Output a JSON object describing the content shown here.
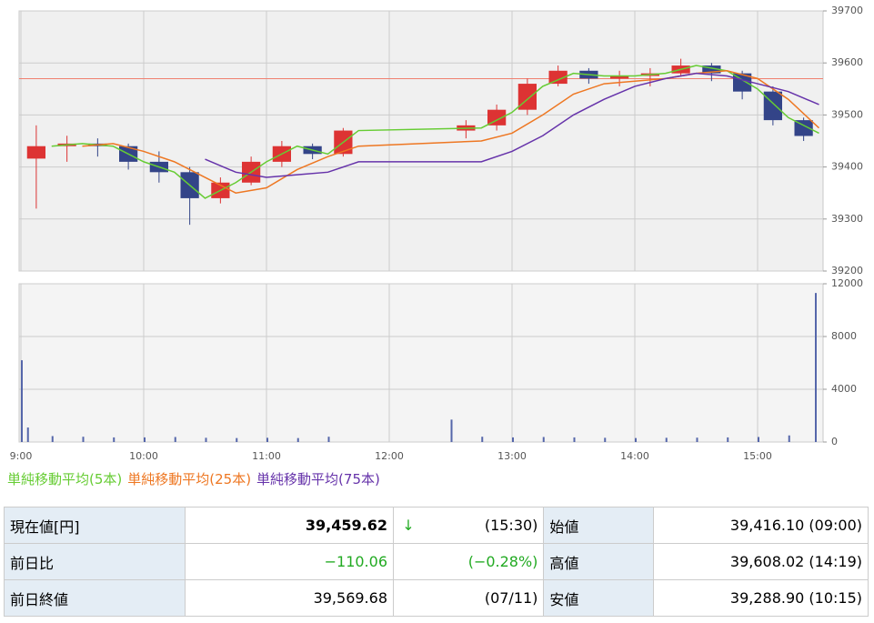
{
  "chart_data": [
    {
      "type": "candlestick",
      "x": [
        0,
        15,
        30,
        45,
        60,
        75,
        90,
        105,
        120,
        135,
        150,
        210,
        225,
        240,
        255,
        270,
        285,
        300,
        315,
        330,
        345,
        360,
        375
      ],
      "open": [
        39416.1,
        39440,
        39445,
        39440,
        39410,
        39390,
        39340,
        39370,
        39410,
        39440,
        39425,
        39470,
        39480,
        39510,
        39560,
        39585,
        39570,
        39575,
        39580,
        39595,
        39580,
        39545,
        39490
      ],
      "high": [
        39480,
        39460,
        39455,
        39445,
        39430,
        39400,
        39380,
        39420,
        39450,
        39445,
        39475,
        39490,
        39520,
        39570,
        39595,
        39590,
        39585,
        39590,
        39608.02,
        39600,
        39585,
        39555,
        39495
      ],
      "low": [
        39320,
        39410,
        39420,
        39395,
        39370,
        39288.9,
        39330,
        39365,
        39400,
        39415,
        39420,
        39455,
        39470,
        39500,
        39555,
        39560,
        39555,
        39555,
        39575,
        39565,
        39530,
        39480,
        39450
      ],
      "close": [
        39440,
        39445,
        39440,
        39410,
        39390,
        39340,
        39370,
        39410,
        39440,
        39425,
        39470,
        39480,
        39510,
        39560,
        39585,
        39570,
        39575,
        39580,
        39595,
        39580,
        39545,
        39490,
        39459.62
      ],
      "up_color": "#dd3333",
      "down_color": "#334488",
      "reference_line": 39569.68,
      "reference_color": "#f08070",
      "series": [
        {
          "name": "単純移動平均(5本)",
          "color": "#66cc33",
          "x": [
            15,
            30,
            45,
            60,
            75,
            90,
            105,
            120,
            135,
            150,
            165,
            225,
            240,
            255,
            270,
            285,
            300,
            315,
            330,
            345,
            360,
            375,
            390
          ],
          "values": [
            39440,
            39445,
            39440,
            39410,
            39390,
            39340,
            39370,
            39410,
            39440,
            39425,
            39470,
            39475,
            39505,
            39555,
            39580,
            39575,
            39575,
            39580,
            39595,
            39585,
            39550,
            39495,
            39465
          ]
        },
        {
          "name": "単純移動平均(25本)",
          "color": "#ee7722",
          "x": [
            15,
            30,
            45,
            60,
            75,
            90,
            105,
            120,
            135,
            150,
            165,
            225,
            240,
            255,
            270,
            285,
            300,
            315,
            330,
            345,
            360,
            375,
            390
          ],
          "values": [
            null,
            39440,
            39445,
            39430,
            39410,
            39380,
            39350,
            39360,
            39395,
            39420,
            39440,
            39450,
            39465,
            39500,
            39540,
            39560,
            39565,
            39570,
            39580,
            39585,
            39570,
            39530,
            39475
          ]
        },
        {
          "name": "単純移動平均(75本)",
          "color": "#6633aa",
          "x": [
            15,
            30,
            45,
            60,
            75,
            90,
            105,
            120,
            135,
            150,
            165,
            225,
            240,
            255,
            270,
            285,
            300,
            315,
            330,
            345,
            360,
            375,
            390
          ],
          "values": [
            null,
            null,
            null,
            null,
            null,
            39415,
            39390,
            39380,
            39385,
            39390,
            39410,
            39410,
            39430,
            39460,
            39500,
            39530,
            39555,
            39570,
            39580,
            39575,
            39560,
            39545,
            39520
          ]
        }
      ],
      "xlim": [
        0,
        392
      ],
      "ylim": [
        39200,
        39700
      ],
      "yticks": [
        39200,
        39300,
        39400,
        39500,
        39600,
        39700
      ],
      "grid": true
    },
    {
      "type": "bar",
      "x": [
        0,
        3,
        15,
        30,
        45,
        60,
        75,
        90,
        105,
        120,
        135,
        150,
        210,
        225,
        240,
        255,
        270,
        285,
        300,
        315,
        330,
        345,
        360,
        375,
        388
      ],
      "values": [
        6200,
        1100,
        450,
        400,
        350,
        350,
        380,
        320,
        300,
        320,
        300,
        400,
        1700,
        400,
        350,
        380,
        350,
        320,
        300,
        320,
        330,
        350,
        380,
        500,
        11300
      ],
      "color": "#5566aa",
      "xlim": [
        0,
        392
      ],
      "xticks": [
        {
          "value": 0,
          "label": "9:00"
        },
        {
          "value": 60,
          "label": "10:00"
        },
        {
          "value": 120,
          "label": "11:00"
        },
        {
          "value": 180,
          "label": "12:00"
        },
        {
          "value": 240,
          "label": "13:00"
        },
        {
          "value": 300,
          "label": "14:00"
        },
        {
          "value": 360,
          "label": "15:00"
        }
      ],
      "ylim": [
        0,
        12000
      ],
      "yticks": [
        0,
        4000,
        8000,
        12000
      ],
      "grid": true
    }
  ],
  "table": {
    "rows": [
      [
        "現在値[円]",
        "39,459.62",
        "↓",
        "(15:30)",
        "始値",
        "39,416.10 (09:00)"
      ],
      [
        "前日比",
        "−110.06",
        "",
        "(−0.28%)",
        "高値",
        "39,608.02 (14:19)"
      ],
      [
        "前日終値",
        "39,569.68",
        "",
        "(07/11)",
        "安値",
        "39,288.90 (10:15)"
      ]
    ]
  }
}
